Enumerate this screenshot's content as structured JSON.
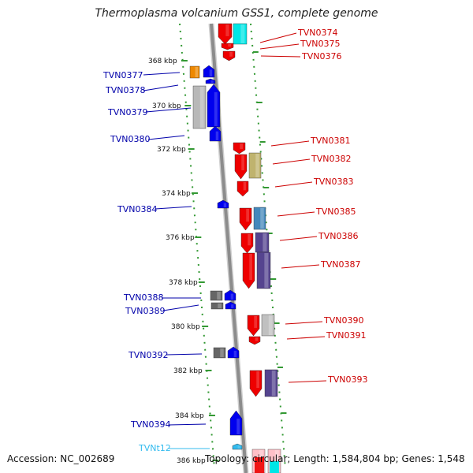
{
  "title": "Thermoplasma volcanium GSS1, complete genome",
  "accession_text": "Accession: NC_002689",
  "topology_text": "Topology: circular; Length: 1,584,804 bp; Genes: 1,548",
  "colors": {
    "forward_gene": "#ee0000",
    "reverse_gene": "#0000ee",
    "trna_gene": "#33bbee",
    "backbone": "#8c8c8c",
    "ruler": "#339933"
  },
  "kbp_ticks": [
    "368 kbp",
    "370 kbp",
    "372 kbp",
    "374 kbp",
    "376 kbp",
    "378 kbp",
    "380 kbp",
    "382 kbp",
    "384 kbp",
    "386 kbp"
  ],
  "left_labels": [
    {
      "text": "TVN0377",
      "color": "#0000aa"
    },
    {
      "text": "TVN0378",
      "color": "#0000aa"
    },
    {
      "text": "TVN0379",
      "color": "#0000aa"
    },
    {
      "text": "TVN0380",
      "color": "#0000aa"
    },
    {
      "text": "TVN0384",
      "color": "#0000aa"
    },
    {
      "text": "TVN0388",
      "color": "#0000aa"
    },
    {
      "text": "TVN0389",
      "color": "#0000aa"
    },
    {
      "text": "TVN0392",
      "color": "#0000aa"
    },
    {
      "text": "TVN0394",
      "color": "#0000aa"
    },
    {
      "text": "TVNt12",
      "color": "#33bbee"
    }
  ],
  "right_labels": [
    {
      "text": "TVN0374"
    },
    {
      "text": "TVN0375"
    },
    {
      "text": "TVN0376"
    },
    {
      "text": "TVN0381"
    },
    {
      "text": "TVN0382"
    },
    {
      "text": "TVN0383"
    },
    {
      "text": "TVN0385"
    },
    {
      "text": "TVN0386"
    },
    {
      "text": "TVN0387"
    },
    {
      "text": "TVN0390"
    },
    {
      "text": "TVN0391"
    },
    {
      "text": "TVN0393"
    }
  ]
}
